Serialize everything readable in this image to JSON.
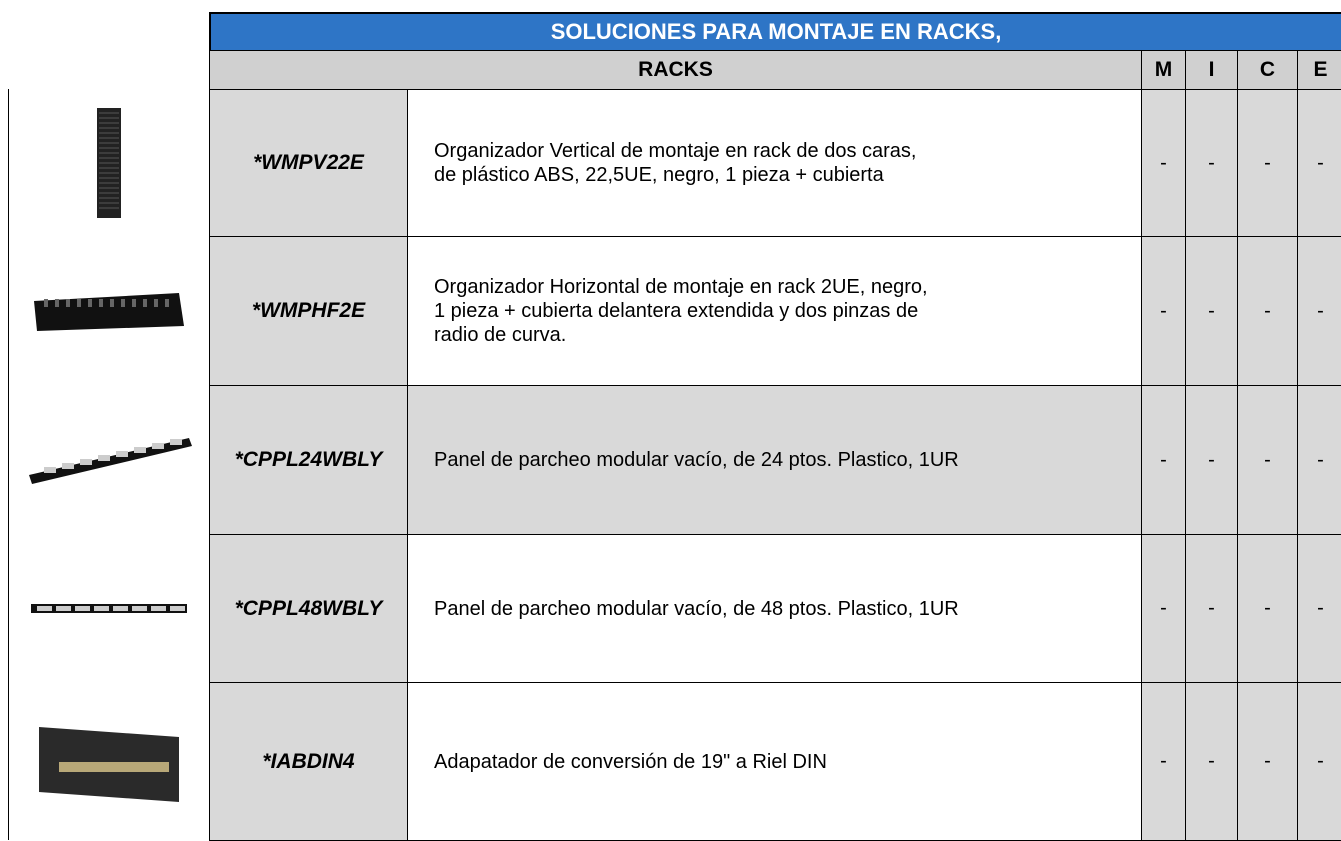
{
  "header": {
    "title": "SOLUCIONES PARA MONTAJE EN RACKS,",
    "subtitle": "RACKS",
    "columns": [
      "M",
      "I",
      "C",
      "E"
    ]
  },
  "table": {
    "rows": [
      {
        "code": "*WMPV22E",
        "description": [
          "Organizador Vertical de montaje en rack de dos caras,",
          "de plástico ABS, 22,5UE, negro, 1 pieza + cubierta"
        ],
        "flags": [
          "-",
          "-",
          "-",
          "-"
        ]
      },
      {
        "code": "*WMPHF2E",
        "description": [
          "Organizador Horizontal de montaje en rack 2UE, negro,",
          "1 pieza + cubierta delantera extendida y dos pinzas de",
          "radio de curva."
        ],
        "flags": [
          "-",
          "-",
          "-",
          "-"
        ]
      },
      {
        "code": "*CPPL24WBLY",
        "description": [
          "Panel de parcheo modular vacío, de 24 ptos. Plastico, 1UR"
        ],
        "flags": [
          "-",
          "-",
          "-",
          "-"
        ]
      },
      {
        "code": "*CPPL48WBLY",
        "description": [
          "Panel de parcheo modular vacío, de 48 ptos. Plastico, 1UR"
        ],
        "flags": [
          "-",
          "-",
          "-",
          "-"
        ]
      },
      {
        "code": "*IABDIN4",
        "description": [
          "Adapatador de conversión de 19\" a Riel DIN"
        ],
        "flags": [
          "-",
          "-",
          "-",
          "-"
        ]
      }
    ]
  }
}
